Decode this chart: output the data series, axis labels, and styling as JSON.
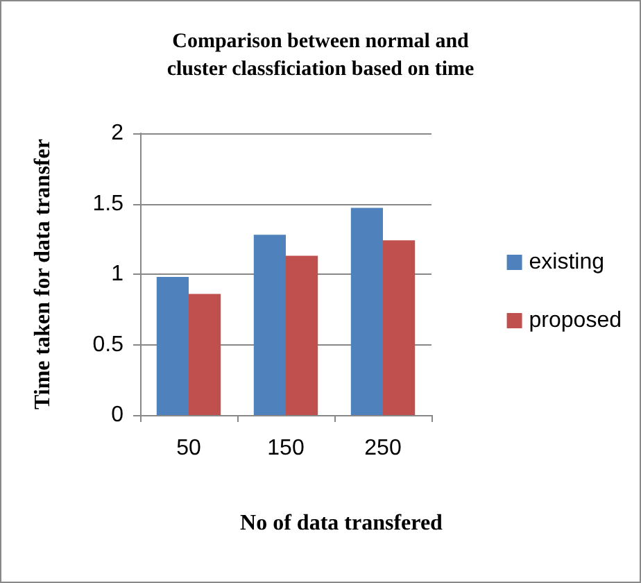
{
  "chart_data": {
    "type": "bar",
    "title": "Comparison between normal and\ncluster classficiation based on time",
    "xlabel": "No of data transfered",
    "ylabel": "Time taken for data transfer",
    "categories": [
      "50",
      "150",
      "250"
    ],
    "series": [
      {
        "name": "existing",
        "color": "#4f81bd",
        "values": [
          0.98,
          1.28,
          1.47
        ]
      },
      {
        "name": "proposed",
        "color": "#c0504d",
        "values": [
          0.86,
          1.13,
          1.24
        ]
      }
    ],
    "ylim": [
      0,
      2
    ],
    "yticks": [
      0,
      0.5,
      1,
      1.5,
      2
    ],
    "grid": "y",
    "legend": "right"
  }
}
